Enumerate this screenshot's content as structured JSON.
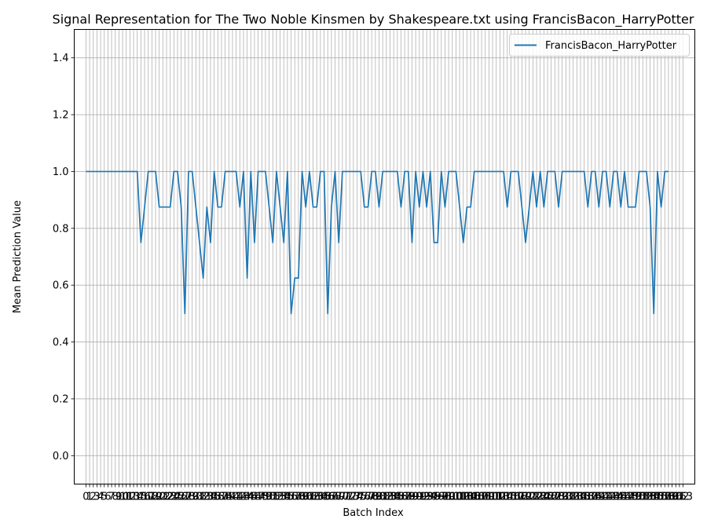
{
  "chart_data": {
    "type": "line",
    "title": "Signal Representation for The Two Noble Kinsmen by Shakespeare.txt using FrancisBacon_HarryPotter",
    "xlabel": "Batch Index",
    "ylabel": "Mean Prediction Value",
    "xlim": [
      -3.2,
      166.2
    ],
    "ylim": [
      -0.1,
      1.5
    ],
    "yticks": [
      0.0,
      0.2,
      0.4,
      0.6,
      0.8,
      1.0,
      1.2,
      1.4
    ],
    "ytick_labels": [
      "0.0",
      "0.2",
      "0.4",
      "0.6",
      "0.8",
      "1.0",
      "1.2",
      "1.4"
    ],
    "xticks_count": 164,
    "grid": true,
    "legend": "top-right",
    "series_color": "#1f77b4",
    "series": [
      {
        "name": "FrancisBacon_HarryPotter",
        "x_start": 0,
        "values": [
          1.0,
          1.0,
          1.0,
          1.0,
          1.0,
          1.0,
          1.0,
          1.0,
          1.0,
          1.0,
          1.0,
          1.0,
          1.0,
          1.0,
          1.0,
          0.75,
          0.875,
          1.0,
          1.0,
          1.0,
          0.875,
          0.875,
          0.875,
          0.875,
          1.0,
          1.0,
          0.875,
          0.5,
          1.0,
          1.0,
          0.875,
          0.75,
          0.625,
          0.875,
          0.75,
          1.0,
          0.875,
          0.875,
          1.0,
          1.0,
          1.0,
          1.0,
          0.875,
          1.0,
          0.625,
          1.0,
          0.75,
          1.0,
          1.0,
          1.0,
          0.875,
          0.75,
          1.0,
          0.875,
          0.75,
          1.0,
          0.5,
          0.625,
          0.625,
          1.0,
          0.875,
          1.0,
          0.875,
          0.875,
          1.0,
          1.0,
          0.5,
          0.875,
          1.0,
          0.75,
          1.0,
          1.0,
          1.0,
          1.0,
          1.0,
          1.0,
          0.875,
          0.875,
          1.0,
          1.0,
          0.875,
          1.0,
          1.0,
          1.0,
          1.0,
          1.0,
          0.875,
          1.0,
          1.0,
          0.75,
          1.0,
          0.875,
          1.0,
          0.875,
          1.0,
          0.75,
          0.75,
          1.0,
          0.875,
          1.0,
          1.0,
          1.0,
          0.875,
          0.75,
          0.875,
          0.875,
          1.0,
          1.0,
          1.0,
          1.0,
          1.0,
          1.0,
          1.0,
          1.0,
          1.0,
          0.875,
          1.0,
          1.0,
          1.0,
          0.875,
          0.75,
          0.875,
          1.0,
          0.875,
          1.0,
          0.875,
          1.0,
          1.0,
          1.0,
          0.875,
          1.0,
          1.0,
          1.0,
          1.0,
          1.0,
          1.0,
          1.0,
          0.875,
          1.0,
          1.0,
          0.875,
          1.0,
          1.0,
          0.875,
          1.0,
          1.0,
          0.875,
          1.0,
          0.875,
          0.875,
          0.875,
          1.0,
          1.0,
          1.0,
          0.875,
          0.5,
          1.0,
          0.875,
          1.0,
          1.0
        ]
      }
    ]
  }
}
